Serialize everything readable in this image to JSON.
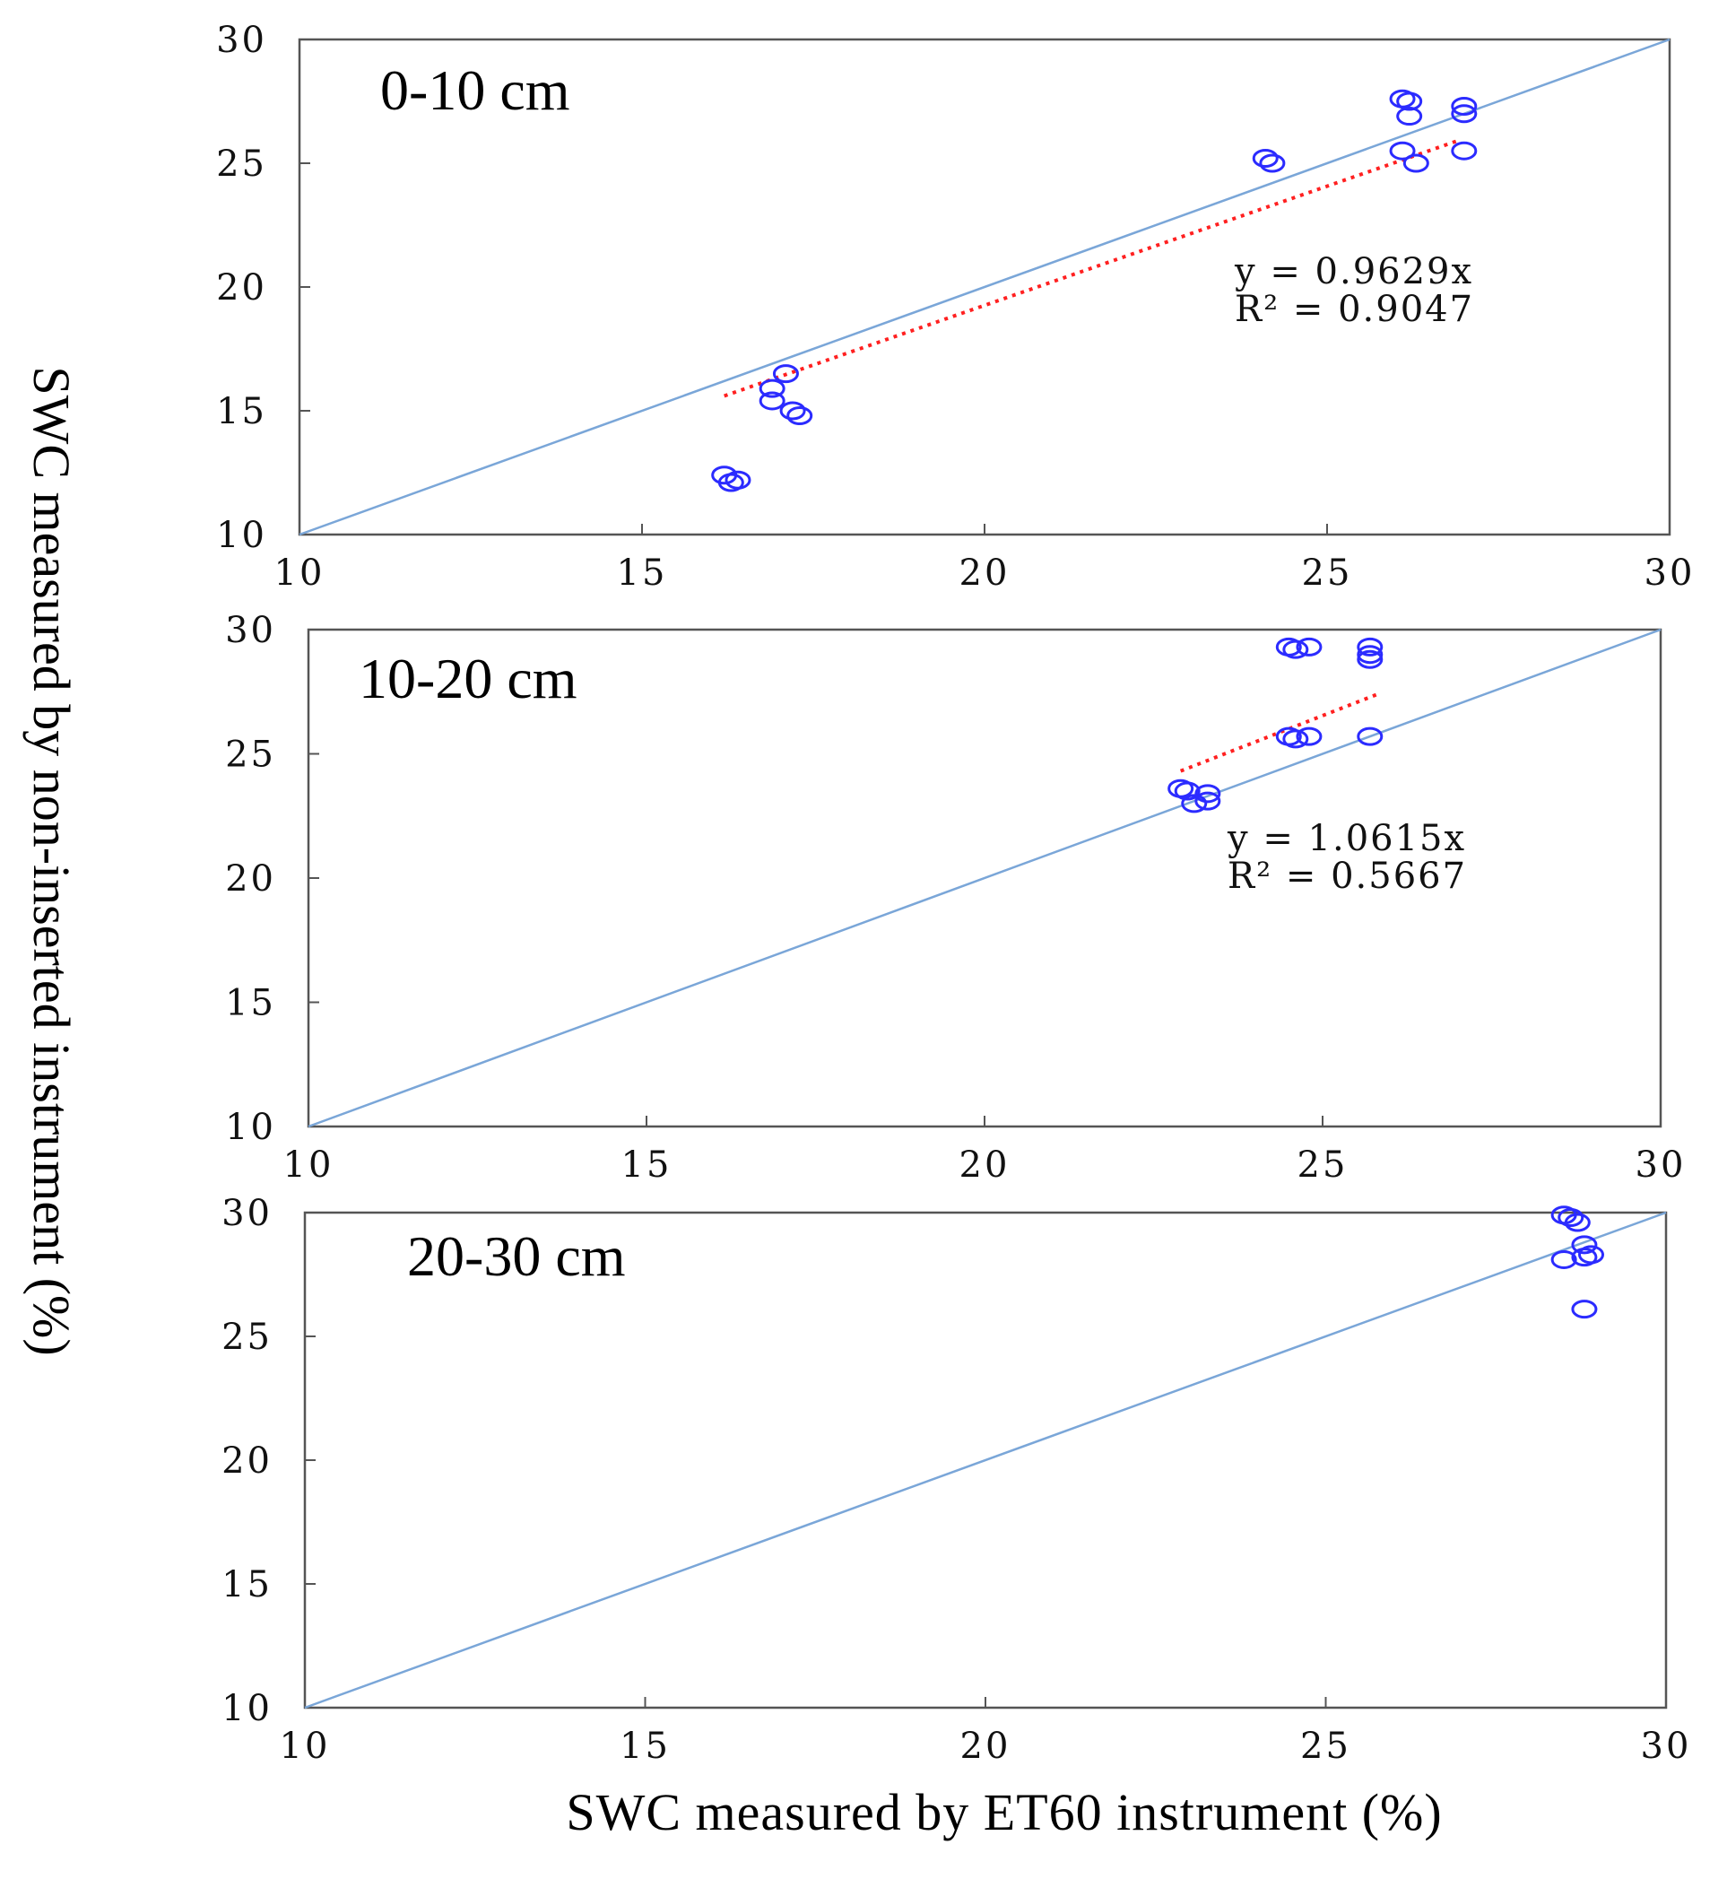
{
  "chart_data": {
    "type": "scatter",
    "xlabel": "SWC measured by ET60 instrument (%)",
    "ylabel": "SWC measured by non-inserted instrument (%)",
    "colors": {
      "points": "#2b2bff",
      "one_to_one": "#7aa6d8",
      "fit": "#ff2020",
      "frame": "#555555"
    },
    "panels": [
      {
        "title": "0-10 cm",
        "xlim": [
          10,
          30
        ],
        "ylim": [
          10,
          30
        ],
        "xticks": [
          "10",
          "15",
          "20",
          "25",
          "30"
        ],
        "yticks": [
          "10",
          "15",
          "20",
          "25",
          "30"
        ],
        "one_to_one": true,
        "fit": {
          "equation": "y = 0.9629x",
          "r2": "R² = 0.9047",
          "slope": 0.9629,
          "x_range": [
            16.2,
            26.9
          ]
        },
        "points": [
          {
            "x": 16.2,
            "y": 12.4
          },
          {
            "x": 16.3,
            "y": 12.1
          },
          {
            "x": 16.4,
            "y": 12.2
          },
          {
            "x": 16.9,
            "y": 15.4
          },
          {
            "x": 16.9,
            "y": 15.9
          },
          {
            "x": 17.1,
            "y": 16.5
          },
          {
            "x": 17.2,
            "y": 15.0
          },
          {
            "x": 17.3,
            "y": 14.8
          },
          {
            "x": 24.1,
            "y": 25.2
          },
          {
            "x": 24.2,
            "y": 25.0
          },
          {
            "x": 26.1,
            "y": 27.6
          },
          {
            "x": 26.2,
            "y": 27.5
          },
          {
            "x": 26.2,
            "y": 26.9
          },
          {
            "x": 26.1,
            "y": 25.5
          },
          {
            "x": 26.3,
            "y": 25.0
          },
          {
            "x": 27.0,
            "y": 27.3
          },
          {
            "x": 27.0,
            "y": 27.0
          },
          {
            "x": 27.0,
            "y": 25.5
          }
        ]
      },
      {
        "title": "10-20 cm",
        "xlim": [
          10,
          30
        ],
        "ylim": [
          10,
          30
        ],
        "xticks": [
          "10",
          "15",
          "20",
          "25",
          "30"
        ],
        "yticks": [
          "10",
          "15",
          "20",
          "25",
          "30"
        ],
        "one_to_one": true,
        "fit": {
          "equation": "y = 1.0615x",
          "r2": "R² = 0.5667",
          "slope": 1.0615,
          "x_range": [
            22.9,
            25.8
          ]
        },
        "points": [
          {
            "x": 22.9,
            "y": 23.6
          },
          {
            "x": 23.0,
            "y": 23.5
          },
          {
            "x": 23.1,
            "y": 23.0
          },
          {
            "x": 23.3,
            "y": 23.1
          },
          {
            "x": 23.3,
            "y": 23.4
          },
          {
            "x": 24.5,
            "y": 25.7
          },
          {
            "x": 24.6,
            "y": 25.6
          },
          {
            "x": 24.8,
            "y": 25.7
          },
          {
            "x": 24.5,
            "y": 29.3
          },
          {
            "x": 24.6,
            "y": 29.2
          },
          {
            "x": 24.8,
            "y": 29.3
          },
          {
            "x": 25.7,
            "y": 29.3
          },
          {
            "x": 25.7,
            "y": 29.0
          },
          {
            "x": 25.7,
            "y": 28.8
          },
          {
            "x": 25.7,
            "y": 25.7
          }
        ]
      },
      {
        "title": "20-30 cm",
        "xlim": [
          10,
          30
        ],
        "ylim": [
          10,
          30
        ],
        "xticks": [
          "10",
          "15",
          "20",
          "25",
          "30"
        ],
        "yticks": [
          "10",
          "15",
          "20",
          "25",
          "30"
        ],
        "one_to_one": true,
        "fit": null,
        "points": [
          {
            "x": 28.5,
            "y": 29.9
          },
          {
            "x": 28.6,
            "y": 29.8
          },
          {
            "x": 28.7,
            "y": 29.6
          },
          {
            "x": 28.8,
            "y": 28.7
          },
          {
            "x": 28.5,
            "y": 28.1
          },
          {
            "x": 28.8,
            "y": 28.2
          },
          {
            "x": 28.9,
            "y": 28.3
          },
          {
            "x": 28.8,
            "y": 26.1
          }
        ]
      }
    ]
  }
}
